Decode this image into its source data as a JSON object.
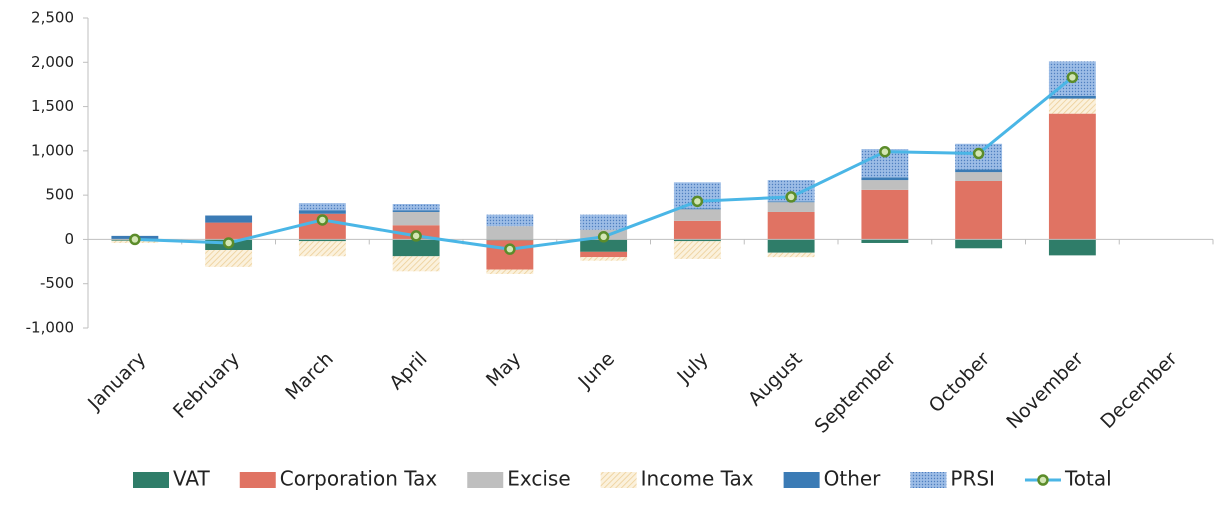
{
  "chart_data": {
    "type": "stacked-bar-line",
    "categories": [
      "January",
      "February",
      "March",
      "April",
      "May",
      "June",
      "July",
      "August",
      "September",
      "October",
      "November",
      "December"
    ],
    "ylim": [
      -1000,
      2500
    ],
    "yticks": [
      {
        "value": -1000,
        "label": "-1,000"
      },
      -500,
      0,
      500,
      {
        "value": 1000,
        "label": "1,000"
      },
      {
        "value": 1500,
        "label": "1,500"
      },
      {
        "value": 2000,
        "label": "2,000"
      },
      {
        "value": 2500,
        "label": "2,500"
      }
    ],
    "grid": false,
    "legend": "bottom",
    "series": [
      {
        "name": "VAT",
        "color": "#2f7d69",
        "pattern": "solid",
        "values": [
          -15,
          -120,
          -20,
          -190,
          -10,
          -140,
          -20,
          -150,
          -40,
          -100,
          -180,
          null
        ]
      },
      {
        "name": "Corporation Tax",
        "color": "#e07363",
        "pattern": "solid",
        "values": [
          0,
          190,
          290,
          160,
          -330,
          -60,
          210,
          310,
          560,
          660,
          1420,
          null
        ]
      },
      {
        "name": "Excise",
        "color": "#bfbfbf",
        "pattern": "solid",
        "values": [
          0,
          0,
          0,
          150,
          150,
          110,
          130,
          110,
          110,
          100,
          0,
          null
        ]
      },
      {
        "name": "Income Tax",
        "color": "#edcf98",
        "pattern": "hatch",
        "values": [
          -25,
          -190,
          -170,
          -170,
          -50,
          -40,
          -200,
          -50,
          0,
          0,
          170,
          null
        ]
      },
      {
        "name": "Other",
        "color": "#3b7bb5",
        "pattern": "solid",
        "values": [
          40,
          80,
          40,
          20,
          0,
          0,
          10,
          10,
          30,
          30,
          30,
          null
        ]
      },
      {
        "name": "PRSI",
        "color": "#9dbde6",
        "pattern": "dots",
        "values": [
          0,
          0,
          80,
          70,
          130,
          170,
          295,
          240,
          320,
          290,
          390,
          null
        ]
      },
      {
        "name": "Total",
        "type": "line",
        "color": "#4ab6e6",
        "marker_color": "#5b8c2a",
        "values": [
          0,
          -40,
          220,
          40,
          -110,
          30,
          430,
          480,
          990,
          970,
          1830,
          null
        ]
      }
    ]
  }
}
